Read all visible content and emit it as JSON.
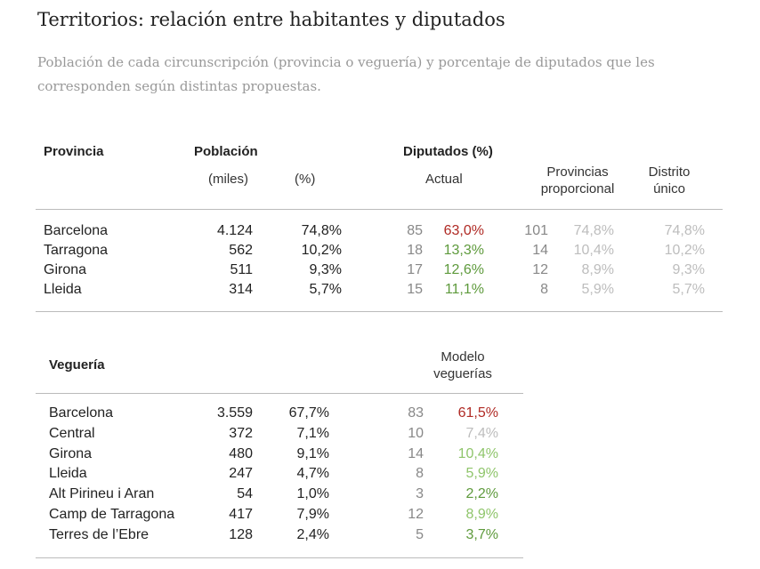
{
  "title": "Territorios: relación entre habitantes y diputados",
  "subtitle": "Población de cada circunscripción (provincia o veguería) y porcentaje de diputados que les corresponden según distintas propuestas.",
  "colors": {
    "red": "#b02a24",
    "green": "#5e9a3c",
    "light_green": "#8fc56b",
    "gray": "#bdbdbd",
    "seat_gray": "#888888"
  },
  "provincias": {
    "header": "Provincia",
    "poblacion": "Población",
    "miles": "(miles)",
    "pct": "(%)",
    "diputados": "Diputados (%)",
    "actual": "Actual",
    "prov_prop": "Provincias proporcional",
    "distrito": "Distrito único",
    "rows": [
      {
        "name": "Barcelona",
        "miles": "4.124",
        "pct": "74,8%",
        "act_seats": "85",
        "act_pct": "63,0%",
        "act_color": "red",
        "prop_seats": "101",
        "prop_pct": "74,8%",
        "unico": "74,8%"
      },
      {
        "name": "Tarragona",
        "miles": "562",
        "pct": "10,2%",
        "act_seats": "18",
        "act_pct": "13,3%",
        "act_color": "green",
        "prop_seats": "14",
        "prop_pct": "10,4%",
        "unico": "10,2%"
      },
      {
        "name": "Girona",
        "miles": "511",
        "pct": "9,3%",
        "act_seats": "17",
        "act_pct": "12,6%",
        "act_color": "green",
        "prop_seats": "12",
        "prop_pct": "8,9%",
        "unico": "9,3%"
      },
      {
        "name": "Lleida",
        "miles": "314",
        "pct": "5,7%",
        "act_seats": "15",
        "act_pct": "11,1%",
        "act_color": "green",
        "prop_seats": "8",
        "prop_pct": "5,9%",
        "unico": "5,7%"
      }
    ]
  },
  "vegueries": {
    "header": "Veguería",
    "modelo": "Modelo veguerías",
    "rows": [
      {
        "name": "Barcelona",
        "miles": "3.559",
        "pct": "67,7%",
        "seats": "83",
        "seat_pct": "61,5%",
        "color": "red"
      },
      {
        "name": "Central",
        "miles": "372",
        "pct": "7,1%",
        "seats": "10",
        "seat_pct": "7,4%",
        "color": "gray"
      },
      {
        "name": "Girona",
        "miles": "480",
        "pct": "9,1%",
        "seats": "14",
        "seat_pct": "10,4%",
        "color": "light_green"
      },
      {
        "name": "Lleida",
        "miles": "247",
        "pct": "4,7%",
        "seats": "8",
        "seat_pct": "5,9%",
        "color": "light_green"
      },
      {
        "name": "Alt Pirineu i Aran",
        "miles": "54",
        "pct": "1,0%",
        "seats": "3",
        "seat_pct": "2,2%",
        "color": "green"
      },
      {
        "name": "Camp de Tarragona",
        "miles": "417",
        "pct": "7,9%",
        "seats": "12",
        "seat_pct": "8,9%",
        "color": "light_green"
      },
      {
        "name": "Terres de l’Ebre",
        "miles": "128",
        "pct": "2,4%",
        "seats": "5",
        "seat_pct": "3,7%",
        "color": "green"
      }
    ]
  }
}
